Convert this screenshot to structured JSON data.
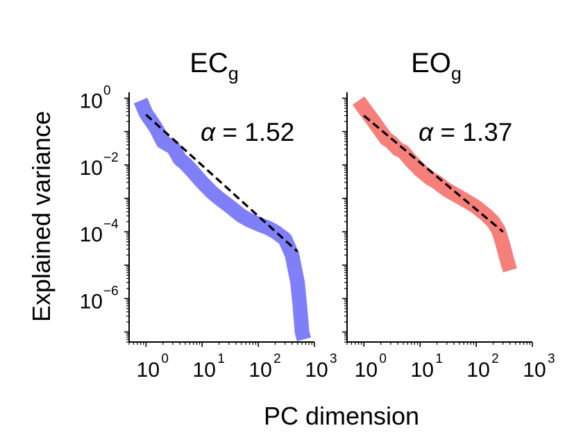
{
  "figure": {
    "ylabel": "Explained variance",
    "xlabel": "PC dimension",
    "colors": {
      "EC": "#7f7ff8",
      "EO": "#f67f7a",
      "fit": "#000000",
      "axis": "#000000"
    }
  },
  "chart_data": [
    {
      "type": "line",
      "title": {
        "base": "EC",
        "subscript": "g"
      },
      "annotation": {
        "symbol": "α",
        "text": "= 1.52"
      },
      "xscale": "log",
      "yscale": "log",
      "xlim": [
        0.5,
        1000
      ],
      "ylim": [
        5e-08,
        1.5
      ],
      "xticks": [
        {
          "base": "10",
          "exp": "0"
        },
        {
          "base": "10",
          "exp": "1"
        },
        {
          "base": "10",
          "exp": "2"
        },
        {
          "base": "10",
          "exp": "3"
        }
      ],
      "yticks": [
        {
          "base": "10",
          "exp": "0"
        },
        {
          "base": "10",
          "exp": "−2"
        },
        {
          "base": "10",
          "exp": "−4"
        },
        {
          "base": "10",
          "exp": "−6"
        }
      ],
      "series": [
        {
          "color": "#7f7ff8",
          "style": "thick-solid",
          "x": [
            0.8,
            1,
            1.5,
            2,
            2.5,
            3,
            4,
            5,
            7,
            10,
            15,
            20,
            30,
            50,
            70,
            100,
            150,
            200,
            300,
            400,
            500,
            550,
            600,
            650
          ],
          "y": [
            0.85,
            0.35,
            0.13,
            0.05,
            0.04,
            0.035,
            0.015,
            0.011,
            0.006,
            0.003,
            0.0015,
            0.001,
            0.0006,
            0.0003,
            0.00022,
            0.00017,
            0.00013,
            0.0001,
            6e-05,
            2e-05,
            3e-06,
            6e-07,
            1e-07,
            6e-08
          ]
        },
        {
          "color": "#000000",
          "style": "dashed",
          "x": [
            1,
            500
          ],
          "y": [
            0.32,
            2.56e-05
          ]
        }
      ]
    },
    {
      "type": "line",
      "title": {
        "base": "EO",
        "subscript": "g"
      },
      "annotation": {
        "symbol": "α",
        "text": "= 1.37"
      },
      "xscale": "log",
      "yscale": "log",
      "xlim": [
        0.5,
        1000
      ],
      "ylim": [
        5e-08,
        1.5
      ],
      "xticks": [
        {
          "base": "10",
          "exp": "0"
        },
        {
          "base": "10",
          "exp": "1"
        },
        {
          "base": "10",
          "exp": "2"
        },
        {
          "base": "10",
          "exp": "3"
        }
      ],
      "yticks": [],
      "series": [
        {
          "color": "#f67f7a",
          "style": "thick-solid",
          "x": [
            0.8,
            1,
            1.5,
            2,
            2.5,
            3,
            4,
            5,
            7,
            10,
            15,
            20,
            30,
            50,
            70,
            100,
            150,
            200,
            250,
            300,
            350,
            400
          ],
          "y": [
            0.85,
            0.5,
            0.2,
            0.1,
            0.06,
            0.05,
            0.03,
            0.025,
            0.013,
            0.007,
            0.004,
            0.003,
            0.0018,
            0.0011,
            0.0008,
            0.00055,
            0.00032,
            0.0002,
            0.00011,
            4e-05,
            1.5e-05,
            7e-06
          ]
        },
        {
          "color": "#000000",
          "style": "dashed",
          "x": [
            1,
            300
          ],
          "y": [
            0.3,
            0.0001
          ]
        }
      ]
    }
  ]
}
